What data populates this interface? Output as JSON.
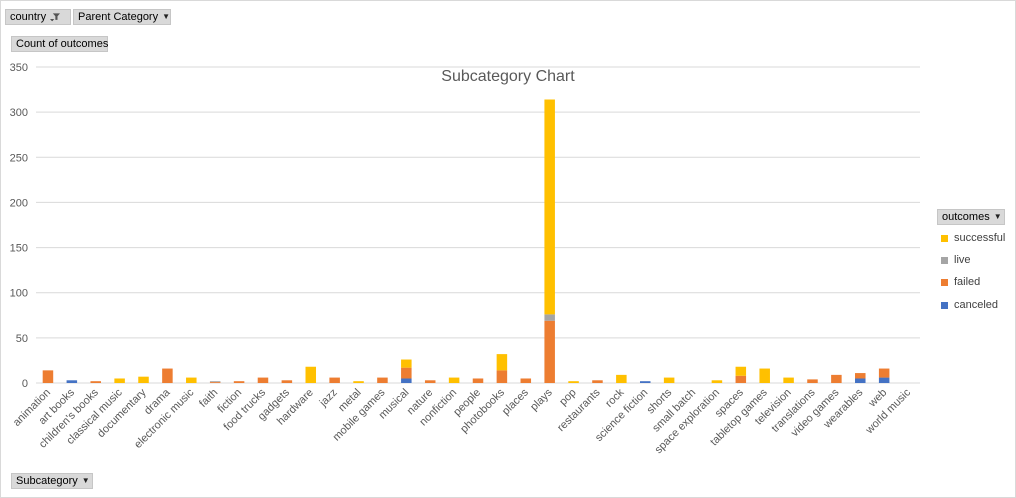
{
  "filters": {
    "country_label": "country",
    "parent_category_label": "Parent Category",
    "values_label": "Count of outcomes",
    "axis_field_label": "Subcategory"
  },
  "legend": {
    "title": "outcomes",
    "items": [
      {
        "label": "successful",
        "color": "#ffc000"
      },
      {
        "label": "live",
        "color": "#a5a5a5"
      },
      {
        "label": "failed",
        "color": "#ed7d31"
      },
      {
        "label": "canceled",
        "color": "#4472c4"
      }
    ]
  },
  "chart_data": {
    "type": "bar",
    "stacked": true,
    "title": "Subcategory Chart",
    "xlabel": "",
    "ylabel": "",
    "ylim": [
      0,
      350
    ],
    "yticks": [
      0,
      50,
      100,
      150,
      200,
      250,
      300,
      350
    ],
    "grid": true,
    "legend_position": "right",
    "categories": [
      "animation",
      "art books",
      "children's books",
      "classical music",
      "documentary",
      "drama",
      "electronic music",
      "faith",
      "fiction",
      "food trucks",
      "gadgets",
      "hardware",
      "jazz",
      "metal",
      "mobile games",
      "musical",
      "nature",
      "nonfiction",
      "people",
      "photobooks",
      "places",
      "plays",
      "pop",
      "restaurants",
      "rock",
      "science fiction",
      "shorts",
      "small batch",
      "space exploration",
      "spaces",
      "tabletop games",
      "television",
      "translations",
      "video games",
      "wearables",
      "web",
      "world music"
    ],
    "series": [
      {
        "name": "canceled",
        "color": "#4472c4",
        "values": [
          0,
          3,
          0,
          0,
          0,
          0,
          0,
          0,
          0,
          0,
          0,
          0,
          0,
          0,
          0,
          5,
          0,
          0,
          0,
          0,
          0,
          0,
          0,
          0,
          0,
          2,
          0,
          0,
          0,
          0,
          0,
          0,
          0,
          0,
          5,
          6,
          0
        ]
      },
      {
        "name": "failed",
        "color": "#ed7d31",
        "values": [
          14,
          0,
          2,
          0,
          0,
          16,
          0,
          1,
          2,
          6,
          3,
          0,
          6,
          0,
          6,
          12,
          3,
          0,
          5,
          14,
          5,
          69,
          0,
          3,
          0,
          0,
          0,
          0,
          0,
          8,
          0,
          0,
          4,
          9,
          6,
          10,
          0
        ]
      },
      {
        "name": "live",
        "color": "#a5a5a5",
        "values": [
          0,
          0,
          0,
          0,
          0,
          0,
          0,
          1,
          0,
          0,
          0,
          0,
          0,
          0,
          0,
          0,
          0,
          0,
          0,
          0,
          0,
          7,
          0,
          0,
          0,
          0,
          0,
          0,
          0,
          0,
          0,
          0,
          0,
          0,
          0,
          0,
          0
        ]
      },
      {
        "name": "successful",
        "color": "#ffc000",
        "values": [
          0,
          0,
          0,
          5,
          7,
          0,
          6,
          0,
          0,
          0,
          0,
          18,
          0,
          2,
          0,
          9,
          0,
          6,
          0,
          18,
          0,
          238,
          2,
          0,
          9,
          0,
          6,
          0,
          3,
          10,
          16,
          6,
          0,
          0,
          0,
          0,
          0
        ]
      }
    ]
  }
}
